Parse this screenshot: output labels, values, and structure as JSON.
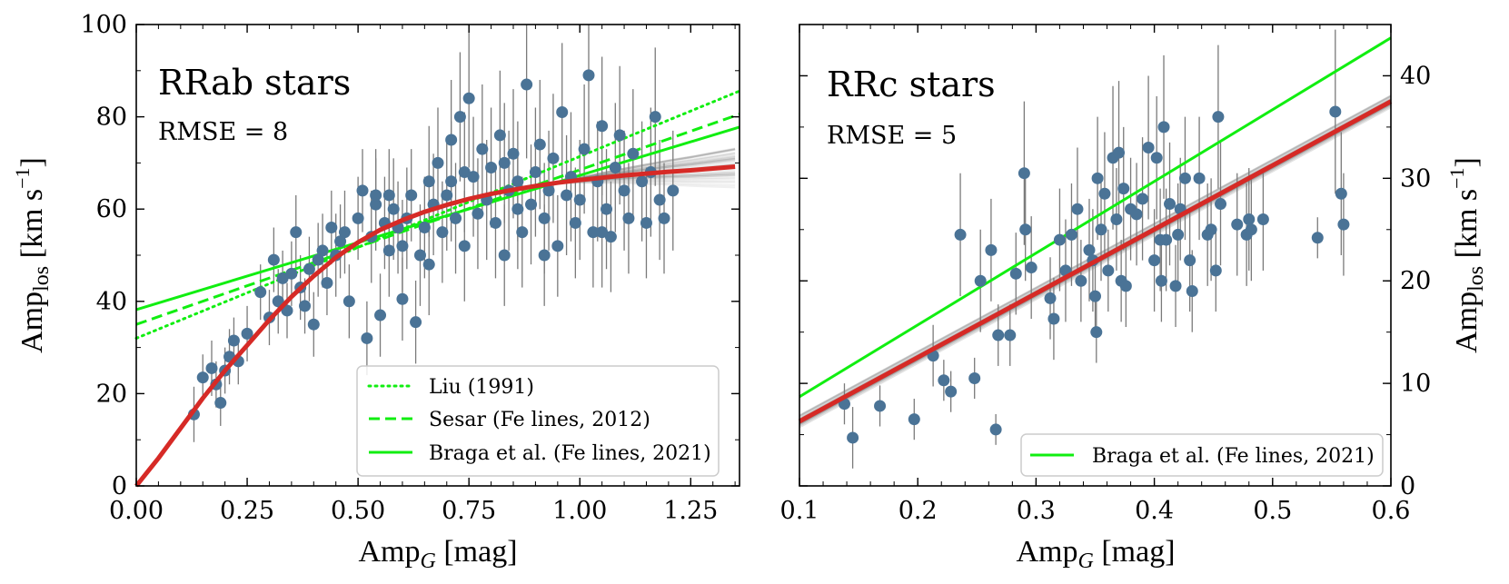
{
  "chart_data": [
    {
      "type": "scatter",
      "panel": "left",
      "title": "RRab stars",
      "annotation": "RMSE = 8",
      "xlabel": {
        "main": "Amp",
        "sub": "G",
        "unit": " [mag]"
      },
      "ylabel": {
        "main": "Amp",
        "sub": "los",
        "unit_pre": " [km s",
        "unit_exp": "−1",
        "unit_post": "]"
      },
      "xlim": [
        0.0,
        1.36
      ],
      "ylim": [
        0,
        100
      ],
      "xticks": [
        0.0,
        0.25,
        0.5,
        0.75,
        1.0,
        1.25
      ],
      "xtick_labels": [
        "0.00",
        "0.25",
        "0.50",
        "0.75",
        "1.00",
        "1.25"
      ],
      "yticks": [
        0,
        20,
        40,
        60,
        80,
        100
      ],
      "ytick_labels": [
        "0",
        "20",
        "40",
        "60",
        "80",
        "100"
      ],
      "scatter_color": "#4a7396",
      "errorbar_color": "#7a7a7a",
      "model_color": "#d62a26",
      "relation_color": "#11ee11",
      "points": [
        [
          0.13,
          15.5,
          6
        ],
        [
          0.15,
          23.5,
          5
        ],
        [
          0.17,
          25.5,
          6
        ],
        [
          0.18,
          22,
          5
        ],
        [
          0.19,
          18,
          5
        ],
        [
          0.2,
          25,
          5
        ],
        [
          0.21,
          28,
          6
        ],
        [
          0.22,
          31.5,
          5
        ],
        [
          0.23,
          27,
          5
        ],
        [
          0.25,
          33,
          6
        ],
        [
          0.28,
          42,
          6
        ],
        [
          0.3,
          36.5,
          6
        ],
        [
          0.31,
          49,
          7
        ],
        [
          0.32,
          40,
          7
        ],
        [
          0.33,
          45,
          6
        ],
        [
          0.34,
          38,
          6
        ],
        [
          0.35,
          46,
          7
        ],
        [
          0.36,
          55,
          8
        ],
        [
          0.37,
          43,
          7
        ],
        [
          0.38,
          39,
          6
        ],
        [
          0.39,
          47,
          7
        ],
        [
          0.4,
          35,
          7
        ],
        [
          0.41,
          49,
          8
        ],
        [
          0.42,
          51,
          8
        ],
        [
          0.43,
          44,
          7
        ],
        [
          0.44,
          56,
          8
        ],
        [
          0.45,
          50,
          9
        ],
        [
          0.46,
          53,
          8
        ],
        [
          0.47,
          55,
          9
        ],
        [
          0.48,
          40,
          8
        ],
        [
          0.5,
          58,
          9
        ],
        [
          0.51,
          64,
          9
        ],
        [
          0.52,
          32,
          8
        ],
        [
          0.53,
          54,
          10
        ],
        [
          0.54,
          61,
          10
        ],
        [
          0.55,
          37,
          9
        ],
        [
          0.56,
          57,
          10
        ],
        [
          0.57,
          63,
          10
        ],
        [
          0.58,
          60,
          11
        ],
        [
          0.59,
          56,
          10
        ],
        [
          0.6,
          52,
          10
        ],
        [
          0.61,
          58,
          11
        ],
        [
          0.62,
          63,
          10
        ],
        [
          0.63,
          35.5,
          9
        ],
        [
          0.64,
          50,
          11
        ],
        [
          0.65,
          56,
          11
        ],
        [
          0.66,
          66,
          12
        ],
        [
          0.67,
          61,
          11
        ],
        [
          0.68,
          70,
          12
        ],
        [
          0.69,
          55,
          11
        ],
        [
          0.7,
          63,
          12
        ],
        [
          0.71,
          75,
          13
        ],
        [
          0.72,
          58,
          12
        ],
        [
          0.73,
          80,
          14
        ],
        [
          0.74,
          52,
          12
        ],
        [
          0.75,
          84,
          15
        ],
        [
          0.76,
          67,
          13
        ],
        [
          0.77,
          59,
          12
        ],
        [
          0.78,
          73,
          14
        ],
        [
          0.79,
          62,
          13
        ],
        [
          0.8,
          69,
          13
        ],
        [
          0.81,
          57,
          12
        ],
        [
          0.82,
          76,
          14
        ],
        [
          0.83,
          50,
          11
        ],
        [
          0.84,
          64,
          13
        ],
        [
          0.85,
          72,
          14
        ],
        [
          0.86,
          66,
          13
        ],
        [
          0.87,
          55,
          12
        ],
        [
          0.88,
          87,
          16
        ],
        [
          0.89,
          61,
          13
        ],
        [
          0.9,
          68,
          14
        ],
        [
          0.91,
          74,
          14
        ],
        [
          0.92,
          58,
          12
        ],
        [
          0.93,
          64,
          13
        ],
        [
          0.94,
          71,
          14
        ],
        [
          0.95,
          52,
          11
        ],
        [
          0.96,
          81,
          15
        ],
        [
          0.97,
          63,
          13
        ],
        [
          0.98,
          67,
          14
        ],
        [
          0.99,
          57,
          12
        ],
        [
          1.0,
          62,
          13
        ],
        [
          1.01,
          73,
          14
        ],
        [
          1.02,
          89,
          16
        ],
        [
          1.03,
          55,
          12
        ],
        [
          1.04,
          66,
          13
        ],
        [
          1.05,
          78,
          15
        ],
        [
          1.06,
          60,
          13
        ],
        [
          1.07,
          54,
          12
        ],
        [
          1.08,
          69,
          14
        ],
        [
          1.09,
          76,
          15
        ],
        [
          1.1,
          64,
          13
        ],
        [
          1.11,
          58,
          12
        ],
        [
          1.12,
          72,
          14
        ],
        [
          1.14,
          66,
          13
        ],
        [
          1.15,
          57,
          12
        ],
        [
          1.16,
          68,
          14
        ],
        [
          1.17,
          80,
          15
        ],
        [
          1.18,
          62,
          13
        ],
        [
          1.19,
          58,
          12
        ],
        [
          1.21,
          64,
          13
        ],
        [
          0.6,
          40.5,
          9
        ],
        [
          0.57,
          51,
          10
        ],
        [
          0.66,
          48,
          11
        ],
        [
          0.74,
          68,
          13
        ],
        [
          0.86,
          60,
          13
        ],
        [
          0.92,
          50,
          11
        ],
        [
          1.05,
          55,
          12
        ],
        [
          0.71,
          66,
          13
        ],
        [
          0.83,
          70,
          13
        ],
        [
          0.54,
          63,
          10
        ]
      ],
      "model_curve": {
        "x": [
          0.0,
          0.05,
          0.1,
          0.15,
          0.2,
          0.25,
          0.3,
          0.35,
          0.4,
          0.45,
          0.5,
          0.55,
          0.6,
          0.65,
          0.7,
          0.75,
          0.8,
          0.85,
          0.9,
          0.95,
          1.0,
          1.05,
          1.1,
          1.15,
          1.2,
          1.25,
          1.3,
          1.35
        ],
        "y": [
          0,
          6,
          12.5,
          19,
          25,
          30.5,
          36,
          41,
          45.5,
          49.5,
          52.8,
          55.5,
          57.6,
          59.4,
          60.9,
          62.2,
          63.3,
          64.2,
          65.0,
          65.7,
          66.3,
          66.8,
          67.3,
          67.7,
          68.1,
          68.4,
          68.8,
          69.2
        ]
      },
      "relations": [
        {
          "name": "Liu (1991)",
          "style": "dotted",
          "slope": 39.4,
          "intercept": 32.0
        },
        {
          "name": "Sesar (Fe lines, 2012)",
          "style": "dashed",
          "slope": 33.5,
          "intercept": 35.0
        },
        {
          "name": "Braga et al. (Fe lines, 2021)",
          "style": "solid",
          "slope": 29.1,
          "intercept": 38.2
        }
      ],
      "legend": {
        "position": "lower right",
        "entries": [
          "Liu (1991)",
          "Sesar (Fe lines, 2012)",
          "Braga et al. (Fe lines, 2021)"
        ]
      }
    },
    {
      "type": "scatter",
      "panel": "right",
      "title": "RRc stars",
      "annotation": "RMSE = 5",
      "xlabel": {
        "main": "Amp",
        "sub": "G",
        "unit": " [mag]"
      },
      "ylabel": {
        "main": "Amp",
        "sub": "los",
        "unit_pre": " [km s",
        "unit_exp": "−1",
        "unit_post": "]"
      },
      "ylabel_side": "right",
      "xlim": [
        0.1,
        0.6
      ],
      "ylim": [
        0,
        45
      ],
      "xticks": [
        0.1,
        0.2,
        0.3,
        0.4,
        0.5,
        0.6
      ],
      "xtick_labels": [
        "0.1",
        "0.2",
        "0.3",
        "0.4",
        "0.5",
        "0.6"
      ],
      "yticks": [
        0,
        10,
        20,
        30,
        40
      ],
      "ytick_labels": [
        "0",
        "10",
        "20",
        "30",
        "40"
      ],
      "scatter_color": "#4a7396",
      "errorbar_color": "#7a7a7a",
      "model_color": "#d62a26",
      "relation_color": "#11ee11",
      "points": [
        [
          0.138,
          8,
          2
        ],
        [
          0.145,
          4.7,
          3
        ],
        [
          0.168,
          7.8,
          2
        ],
        [
          0.197,
          6.5,
          2
        ],
        [
          0.213,
          12.7,
          3
        ],
        [
          0.222,
          10.3,
          2
        ],
        [
          0.228,
          9.2,
          2
        ],
        [
          0.236,
          24.5,
          6
        ],
        [
          0.248,
          10.5,
          2
        ],
        [
          0.253,
          20,
          5
        ],
        [
          0.262,
          23,
          5
        ],
        [
          0.266,
          5.5,
          1.5
        ],
        [
          0.268,
          14.7,
          3
        ],
        [
          0.278,
          14.7,
          3
        ],
        [
          0.283,
          20.7,
          4
        ],
        [
          0.29,
          30.5,
          7
        ],
        [
          0.291,
          25,
          5
        ],
        [
          0.296,
          21.3,
          5
        ],
        [
          0.312,
          18.3,
          4
        ],
        [
          0.315,
          16.3,
          4
        ],
        [
          0.32,
          24,
          5
        ],
        [
          0.325,
          21,
          5
        ],
        [
          0.33,
          24.5,
          5
        ],
        [
          0.335,
          27,
          6
        ],
        [
          0.338,
          20,
          4
        ],
        [
          0.345,
          23,
          5
        ],
        [
          0.348,
          22,
          5
        ],
        [
          0.35,
          18.5,
          4
        ],
        [
          0.351,
          15,
          3
        ],
        [
          0.352,
          30,
          6
        ],
        [
          0.355,
          25,
          5
        ],
        [
          0.358,
          28.5,
          6
        ],
        [
          0.361,
          21,
          4
        ],
        [
          0.365,
          32,
          7
        ],
        [
          0.368,
          26,
          5
        ],
        [
          0.37,
          32.5,
          7
        ],
        [
          0.372,
          20,
          4
        ],
        [
          0.374,
          29,
          6
        ],
        [
          0.376,
          19.5,
          4
        ],
        [
          0.38,
          27,
          5
        ],
        [
          0.385,
          26.5,
          5
        ],
        [
          0.39,
          28,
          6
        ],
        [
          0.395,
          33,
          7
        ],
        [
          0.4,
          22,
          5
        ],
        [
          0.402,
          32,
          6
        ],
        [
          0.405,
          24,
          5
        ],
        [
          0.406,
          20,
          4
        ],
        [
          0.408,
          35,
          7
        ],
        [
          0.41,
          24,
          5
        ],
        [
          0.413,
          27.5,
          6
        ],
        [
          0.418,
          19.5,
          4
        ],
        [
          0.42,
          24.5,
          5
        ],
        [
          0.422,
          27,
          5
        ],
        [
          0.426,
          30,
          6
        ],
        [
          0.43,
          22,
          5
        ],
        [
          0.432,
          19,
          4
        ],
        [
          0.438,
          30,
          6
        ],
        [
          0.445,
          24.5,
          5
        ],
        [
          0.448,
          25,
          5
        ],
        [
          0.452,
          21,
          4
        ],
        [
          0.454,
          36,
          7
        ],
        [
          0.456,
          27.5,
          6
        ],
        [
          0.47,
          25.5,
          5
        ],
        [
          0.478,
          24.5,
          5
        ],
        [
          0.48,
          26,
          5
        ],
        [
          0.482,
          25,
          5
        ],
        [
          0.492,
          26,
          5
        ],
        [
          0.538,
          24.2,
          2
        ],
        [
          0.553,
          36.5,
          8
        ],
        [
          0.558,
          28.5,
          6
        ],
        [
          0.56,
          25.5,
          5
        ]
      ],
      "model_curve": {
        "x": [
          0.1,
          0.6
        ],
        "y": [
          6.3,
          37.5
        ]
      },
      "relations": [
        {
          "name": "Braga et al. (Fe lines, 2021)",
          "style": "solid",
          "slope": 70.0,
          "intercept": 1.7
        }
      ],
      "legend": {
        "position": "lower right",
        "entries": [
          "Braga et al. (Fe lines, 2021)"
        ]
      }
    }
  ]
}
